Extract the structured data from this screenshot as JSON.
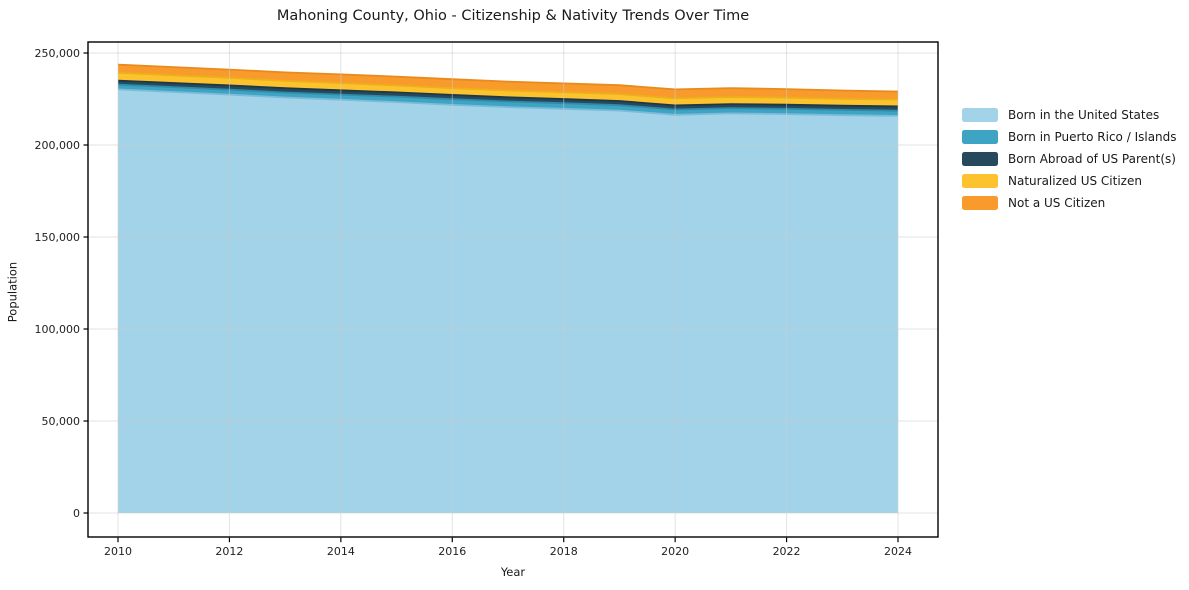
{
  "figure": {
    "title": "Mahoning County, Ohio - Citizenship & Nativity Trends Over Time",
    "xlabel": "Year",
    "ylabel": "Population"
  },
  "chart_data": {
    "type": "area",
    "stacked": true,
    "title": "Mahoning County, Ohio - Citizenship & Nativity Trends Over Time",
    "xlabel": "Year",
    "ylabel": "Population",
    "grid": true,
    "legend_position": "right-outside",
    "x": [
      2010,
      2011,
      2012,
      2013,
      2014,
      2015,
      2016,
      2017,
      2018,
      2019,
      2020,
      2021,
      2022,
      2023,
      2024
    ],
    "x_ticks": [
      2010,
      2012,
      2014,
      2016,
      2018,
      2020,
      2022,
      2024
    ],
    "x_tick_labels": [
      "2010",
      "2012",
      "2014",
      "2016",
      "2018",
      "2020",
      "2022",
      "2024"
    ],
    "y_ticks": [
      0,
      50000,
      100000,
      150000,
      200000,
      250000
    ],
    "y_tick_labels": [
      "0",
      "50,000",
      "100,000",
      "150,000",
      "200,000",
      "250,000"
    ],
    "ylim": [
      -12500,
      256500
    ],
    "series": [
      {
        "name": "Born in the United States",
        "color": "#a3d3e8",
        "edge_color": "#7cbcd9",
        "values": [
          230200,
          228800,
          227400,
          225800,
          224600,
          223300,
          221800,
          220600,
          219700,
          218700,
          216400,
          217200,
          216800,
          216200,
          215800
        ]
      },
      {
        "name": "Born in Puerto Rico / Islands",
        "color": "#3da4c4",
        "edge_color": "#2f8ba8",
        "values": [
          2600,
          2650,
          2700,
          2750,
          2800,
          2950,
          3100,
          3050,
          3000,
          2950,
          2900,
          2850,
          2850,
          2850,
          2850
        ]
      },
      {
        "name": "Born Abroad of US Parent(s)",
        "color": "#27495e",
        "edge_color": "#1d3847",
        "values": [
          2200,
          2250,
          2300,
          2300,
          2350,
          2350,
          2350,
          2300,
          2300,
          2250,
          2200,
          2200,
          2250,
          2300,
          2350
        ]
      },
      {
        "name": "Naturalized US Citizen",
        "color": "#fdc32e",
        "edge_color": "#edaf1a",
        "values": [
          4300,
          4200,
          4100,
          4000,
          3900,
          3750,
          3600,
          3650,
          3700,
          3750,
          3800,
          3850,
          3800,
          3750,
          3700
        ]
      },
      {
        "name": "Not a US Citizen",
        "color": "#f89b2c",
        "edge_color": "#e88a1c",
        "values": [
          4400,
          4450,
          4500,
          4600,
          4700,
          4800,
          4900,
          4850,
          4800,
          4850,
          4900,
          4850,
          4700,
          4500,
          4350
        ]
      }
    ],
    "grid_color": "#cccccc",
    "spine_color": "#000000",
    "text_color": "#1f1f1f"
  }
}
